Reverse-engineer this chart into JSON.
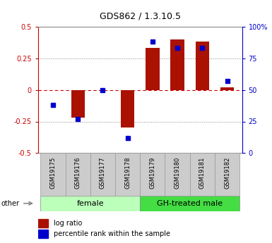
{
  "title": "GDS862 / 1.3.10.5",
  "samples": [
    "GSM19175",
    "GSM19176",
    "GSM19177",
    "GSM19178",
    "GSM19179",
    "GSM19180",
    "GSM19181",
    "GSM19182"
  ],
  "log_ratio": [
    0.0,
    -0.22,
    0.0,
    -0.3,
    0.33,
    0.4,
    0.38,
    0.02
  ],
  "percentile_rank": [
    38,
    27,
    50,
    12,
    88,
    83,
    83,
    57
  ],
  "groups": [
    {
      "label": "female",
      "start": 0,
      "end": 4,
      "color": "#bbffbb"
    },
    {
      "label": "GH-treated male",
      "start": 4,
      "end": 8,
      "color": "#44dd44"
    }
  ],
  "ylim": [
    -0.5,
    0.5
  ],
  "yticks": [
    -0.5,
    -0.25,
    0.0,
    0.25,
    0.5
  ],
  "ytick_labels": [
    "-0.5",
    "-0.25",
    "0",
    "0.25",
    "0.5"
  ],
  "right_yticks": [
    0,
    25,
    50,
    75,
    100
  ],
  "right_ytick_labels": [
    "0",
    "25",
    "50",
    "75",
    "100%"
  ],
  "bar_color": "#aa1100",
  "dot_color": "#0000cc",
  "zero_line_color": "#cc0000",
  "grid_line_color": "#888888",
  "other_label": "other",
  "legend_log_ratio": "log ratio",
  "legend_percentile": "percentile rank within the sample",
  "sample_bg": "#cccccc",
  "fig_bg": "#f0f0f0"
}
